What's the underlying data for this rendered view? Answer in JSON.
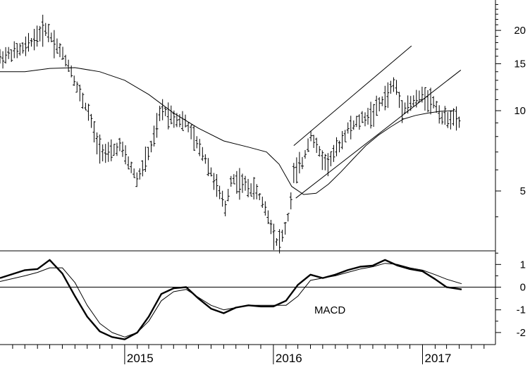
{
  "chart_data": [
    {
      "type": "ohlc",
      "y_scale": "log",
      "ylim": [
        3.0,
        26.0
      ],
      "y_ticks": [
        5,
        10,
        15,
        20
      ],
      "x_ticks": [
        "2015",
        "2016",
        "2017"
      ],
      "price_x_start": "2014-03-01",
      "price_x_end": "2017-04-07",
      "series": [
        {
          "name": "",
          "kind": "weekly-bars",
          "anchors": [
            [
              "2014-03-01",
              15.8
            ],
            [
              "2014-05-01",
              17.2
            ],
            [
              "2014-06-20",
              20.5
            ],
            [
              "2014-07-25",
              17.0
            ],
            [
              "2014-08-20",
              14.5
            ],
            [
              "2014-09-10",
              11.8
            ],
            [
              "2014-10-05",
              9.8
            ],
            [
              "2014-10-25",
              7.6
            ],
            [
              "2014-11-20",
              6.8
            ],
            [
              "2014-12-20",
              7.4
            ],
            [
              "2015-02-01",
              5.5
            ],
            [
              "2015-03-10",
              7.5
            ],
            [
              "2015-04-01",
              10.2
            ],
            [
              "2015-05-01",
              9.5
            ],
            [
              "2015-06-01",
              9.0
            ],
            [
              "2015-06-25",
              7.6
            ],
            [
              "2015-07-15",
              6.8
            ],
            [
              "2015-08-15",
              5.2
            ],
            [
              "2015-09-05",
              4.3
            ],
            [
              "2015-09-20",
              5.6
            ],
            [
              "2015-10-20",
              5.3
            ],
            [
              "2015-11-20",
              5.0
            ],
            [
              "2015-12-10",
              4.4
            ],
            [
              "2016-01-10",
              3.2
            ],
            [
              "2016-01-25",
              3.4
            ],
            [
              "2016-02-10",
              4.2
            ],
            [
              "2016-02-20",
              5.8
            ],
            [
              "2016-03-15",
              6.5
            ],
            [
              "2016-04-01",
              8.2
            ],
            [
              "2016-04-20",
              7.1
            ],
            [
              "2016-05-10",
              6.3
            ],
            [
              "2016-06-01",
              7.0
            ],
            [
              "2016-07-01",
              8.5
            ],
            [
              "2016-08-01",
              9.2
            ],
            [
              "2016-09-01",
              9.8
            ],
            [
              "2016-10-01",
              11.2
            ],
            [
              "2016-10-25",
              12.8
            ],
            [
              "2016-11-10",
              10.3
            ],
            [
              "2016-12-01",
              10.6
            ],
            [
              "2017-01-05",
              11.5
            ],
            [
              "2017-02-01",
              10.6
            ],
            [
              "2017-02-20",
              9.3
            ],
            [
              "2017-03-10",
              9.5
            ],
            [
              "2017-04-07",
              9.0
            ]
          ]
        },
        {
          "name": "",
          "kind": "moving-average",
          "points": [
            [
              "2014-03-01",
              14.0
            ],
            [
              "2014-05-01",
              14.0
            ],
            [
              "2014-07-01",
              14.4
            ],
            [
              "2014-09-01",
              14.5
            ],
            [
              "2014-11-01",
              14.0
            ],
            [
              "2015-01-01",
              13.0
            ],
            [
              "2015-03-01",
              11.5
            ],
            [
              "2015-05-01",
              9.8
            ],
            [
              "2015-07-01",
              8.6
            ],
            [
              "2015-09-01",
              7.7
            ],
            [
              "2015-11-01",
              7.3
            ],
            [
              "2015-12-15",
              7.0
            ],
            [
              "2016-01-15",
              6.3
            ],
            [
              "2016-02-15",
              5.2
            ],
            [
              "2016-03-15",
              4.85
            ],
            [
              "2016-04-15",
              4.9
            ],
            [
              "2016-05-15",
              5.3
            ],
            [
              "2016-06-15",
              5.9
            ],
            [
              "2016-07-15",
              6.6
            ],
            [
              "2016-08-15",
              7.4
            ],
            [
              "2016-09-15",
              8.1
            ],
            [
              "2016-10-15",
              8.7
            ],
            [
              "2016-11-15",
              9.3
            ],
            [
              "2016-12-15",
              9.6
            ],
            [
              "2017-01-15",
              9.8
            ],
            [
              "2017-02-15",
              9.95
            ],
            [
              "2017-03-20",
              10.0
            ]
          ]
        }
      ],
      "trendlines": [
        {
          "from": [
            "2016-02-20",
            7.4
          ],
          "to": [
            "2016-12-05",
            17.5
          ]
        },
        {
          "from": [
            "2016-02-25",
            4.7
          ],
          "to": [
            "2017-04-05",
            14.2
          ]
        }
      ]
    },
    {
      "type": "line",
      "title": "MACD",
      "ylim": [
        -2.5,
        1.6
      ],
      "y_ticks": [
        -2,
        -1,
        0,
        1
      ],
      "series": [
        {
          "name": "",
          "style": "thick",
          "points": [
            [
              "2014-03-01",
              0.4
            ],
            [
              "2014-05-01",
              0.75
            ],
            [
              "2014-06-01",
              0.8
            ],
            [
              "2014-07-01",
              1.2
            ],
            [
              "2014-08-01",
              0.6
            ],
            [
              "2014-09-01",
              -0.4
            ],
            [
              "2014-10-01",
              -1.3
            ],
            [
              "2014-11-01",
              -1.95
            ],
            [
              "2014-12-01",
              -2.2
            ],
            [
              "2015-01-01",
              -2.3
            ],
            [
              "2015-02-01",
              -2.0
            ],
            [
              "2015-03-01",
              -1.3
            ],
            [
              "2015-04-01",
              -0.3
            ],
            [
              "2015-05-01",
              -0.05
            ],
            [
              "2015-06-01",
              0.0
            ],
            [
              "2015-07-01",
              -0.5
            ],
            [
              "2015-08-01",
              -0.95
            ],
            [
              "2015-09-01",
              -1.15
            ],
            [
              "2015-10-01",
              -0.9
            ],
            [
              "2015-11-01",
              -0.8
            ],
            [
              "2015-12-01",
              -0.85
            ],
            [
              "2016-01-01",
              -0.85
            ],
            [
              "2016-02-01",
              -0.6
            ],
            [
              "2016-03-01",
              0.1
            ],
            [
              "2016-04-01",
              0.55
            ],
            [
              "2016-05-01",
              0.4
            ],
            [
              "2016-06-01",
              0.55
            ],
            [
              "2016-07-01",
              0.75
            ],
            [
              "2016-08-01",
              0.9
            ],
            [
              "2016-09-01",
              0.95
            ],
            [
              "2016-10-01",
              1.2
            ],
            [
              "2016-11-01",
              0.95
            ],
            [
              "2016-12-01",
              0.8
            ],
            [
              "2017-01-01",
              0.7
            ],
            [
              "2017-02-01",
              0.35
            ],
            [
              "2017-03-01",
              0.0
            ],
            [
              "2017-04-07",
              -0.1
            ]
          ]
        },
        {
          "name": "",
          "style": "thin",
          "points": [
            [
              "2014-03-01",
              0.25
            ],
            [
              "2014-05-01",
              0.5
            ],
            [
              "2014-06-01",
              0.65
            ],
            [
              "2014-07-01",
              0.85
            ],
            [
              "2014-08-01",
              0.85
            ],
            [
              "2014-09-01",
              0.2
            ],
            [
              "2014-10-01",
              -0.8
            ],
            [
              "2014-11-01",
              -1.6
            ],
            [
              "2014-12-01",
              -2.0
            ],
            [
              "2015-01-01",
              -2.2
            ],
            [
              "2015-02-01",
              -2.0
            ],
            [
              "2015-03-01",
              -1.5
            ],
            [
              "2015-04-01",
              -0.6
            ],
            [
              "2015-05-01",
              -0.2
            ],
            [
              "2015-06-01",
              -0.1
            ],
            [
              "2015-07-01",
              -0.45
            ],
            [
              "2015-08-01",
              -0.8
            ],
            [
              "2015-09-01",
              -1.0
            ],
            [
              "2015-10-01",
              -0.9
            ],
            [
              "2015-11-01",
              -0.8
            ],
            [
              "2015-12-01",
              -0.8
            ],
            [
              "2016-01-01",
              -0.8
            ],
            [
              "2016-02-01",
              -0.8
            ],
            [
              "2016-03-01",
              -0.4
            ],
            [
              "2016-04-01",
              0.3
            ],
            [
              "2016-05-01",
              0.4
            ],
            [
              "2016-06-01",
              0.5
            ],
            [
              "2016-07-01",
              0.65
            ],
            [
              "2016-08-01",
              0.8
            ],
            [
              "2016-09-01",
              0.9
            ],
            [
              "2016-10-01",
              1.05
            ],
            [
              "2016-11-01",
              1.0
            ],
            [
              "2016-12-01",
              0.85
            ],
            [
              "2017-01-01",
              0.75
            ],
            [
              "2017-02-01",
              0.55
            ],
            [
              "2017-03-01",
              0.35
            ],
            [
              "2017-04-07",
              0.15
            ]
          ]
        }
      ],
      "zero_line": 0
    }
  ]
}
